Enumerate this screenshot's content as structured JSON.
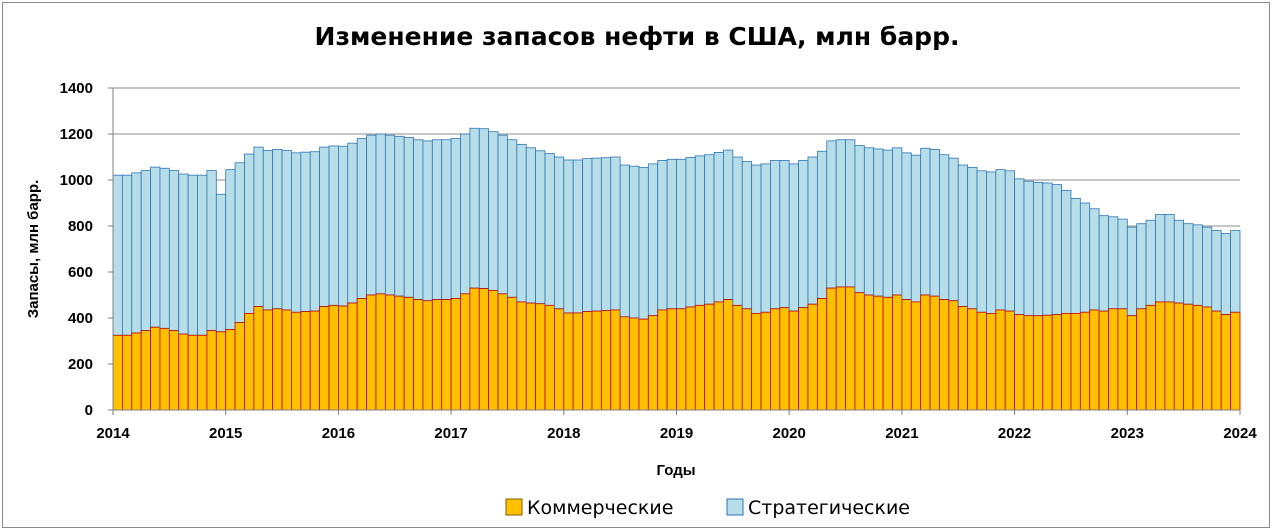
{
  "chart_data": {
    "type": "bar",
    "stacked": true,
    "title": "Изменение запасов нефти в США, млн барр.",
    "xlabel": "Годы",
    "ylabel": "Запасы, млн барр.",
    "ylim": [
      0,
      1400
    ],
    "yticks": [
      0,
      200,
      400,
      600,
      800,
      1000,
      1200,
      1400
    ],
    "xticks": [
      "2014",
      "2015",
      "2016",
      "2017",
      "2018",
      "2019",
      "2020",
      "2021",
      "2022",
      "2023",
      "2024"
    ],
    "grid": true,
    "legend_position": "bottom",
    "series": [
      {
        "name": "Коммерческие",
        "color": "#FFC000",
        "values": [
          325,
          325,
          335,
          345,
          360,
          355,
          345,
          330,
          325,
          325,
          345,
          340,
          350,
          380,
          420,
          450,
          435,
          440,
          435,
          425,
          428,
          430,
          450,
          455,
          452,
          465,
          485,
          500,
          505,
          500,
          495,
          490,
          480,
          475,
          480,
          480,
          485,
          505,
          530,
          528,
          520,
          505,
          490,
          470,
          465,
          462,
          455,
          440,
          422,
          422,
          428,
          430,
          432,
          435,
          405,
          400,
          395,
          410,
          435,
          440,
          440,
          448,
          455,
          460,
          470,
          480,
          455,
          440,
          420,
          425,
          440,
          445,
          430,
          445,
          460,
          485,
          530,
          535,
          535,
          510,
          500,
          495,
          490,
          500,
          480,
          470,
          500,
          495,
          480,
          475,
          450,
          440,
          425,
          420,
          435,
          430,
          415,
          410,
          410,
          412,
          415,
          420,
          420,
          425,
          435,
          430,
          440,
          440,
          410,
          440,
          455,
          470,
          470,
          465,
          460,
          455,
          448,
          430,
          415,
          425,
          435,
          440,
          440
        ]
      },
      {
        "name": "Стратегические",
        "color": "#B7DEE8",
        "values": [
          696,
          696,
          696,
          696,
          696,
          696,
          696,
          696,
          696,
          696,
          696,
          598,
          695,
          695,
          693,
          693,
          693,
          693,
          693,
          693,
          693,
          693,
          693,
          693,
          695,
          695,
          695,
          695,
          695,
          695,
          695,
          695,
          695,
          695,
          695,
          695,
          695,
          695,
          695,
          695,
          690,
          690,
          685,
          685,
          675,
          665,
          660,
          660,
          665,
          665,
          665,
          665,
          665,
          665,
          660,
          660,
          660,
          660,
          650,
          650,
          650,
          650,
          650,
          650,
          650,
          650,
          645,
          640,
          645,
          645,
          645,
          640,
          640,
          640,
          640,
          640,
          640,
          640,
          640,
          640,
          640,
          640,
          640,
          640,
          638,
          638,
          638,
          638,
          630,
          620,
          615,
          615,
          615,
          615,
          610,
          610,
          590,
          585,
          580,
          575,
          565,
          535,
          500,
          475,
          440,
          415,
          400,
          390,
          385,
          370,
          370,
          380,
          380,
          360,
          350,
          350,
          347,
          350,
          352,
          355,
          360,
          360,
          355
        ]
      }
    ],
    "x_start": "2014-01",
    "x_end": "2024-03",
    "x_step": "month"
  },
  "legend": {
    "items": [
      {
        "label": "Коммерческие",
        "color": "#FFC000"
      },
      {
        "label": "Стратегические",
        "color": "#B7DEE8"
      }
    ]
  }
}
